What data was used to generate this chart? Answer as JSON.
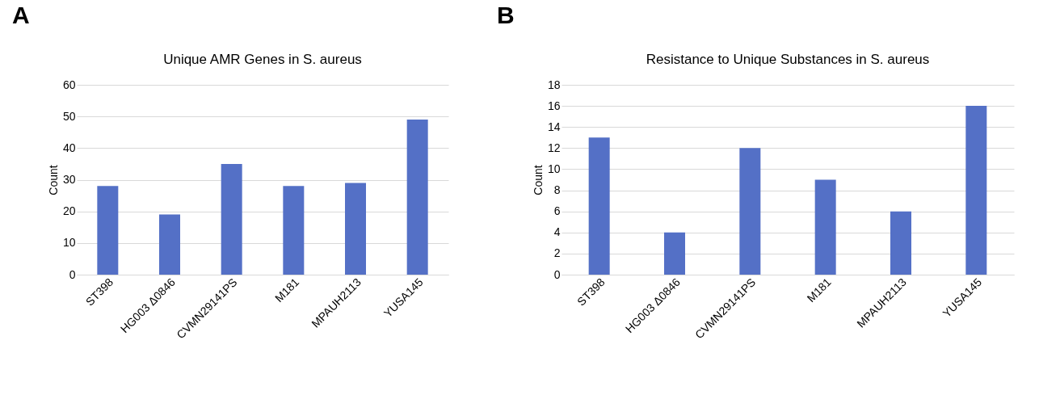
{
  "chart_data": [
    {
      "type": "bar",
      "title": "Unique AMR Genes in S. aureus",
      "ylabel": "Count",
      "annotations": [
        "A"
      ],
      "categories": [
        "ST398",
        "HG003 Δ0846",
        "CVMN29141PS",
        "M181",
        "MPAUH2113",
        "YUSA145"
      ],
      "values": [
        28,
        19,
        35,
        28,
        29,
        49
      ],
      "color": "#5470c6",
      "ylim": [
        0,
        60
      ],
      "yticks": [
        0,
        10,
        20,
        30,
        40,
        50,
        60
      ],
      "grid": "y"
    },
    {
      "type": "bar",
      "title": "Resistance to Unique Substances in S. aureus",
      "ylabel": "Count",
      "annotations": [
        "B"
      ],
      "categories": [
        "ST398",
        "HG003 Δ0846",
        "CVMN29141PS",
        "M181",
        "MPAUH2113",
        "YUSA145"
      ],
      "values": [
        13,
        4,
        12,
        9,
        6,
        16
      ],
      "color": "#5470c6",
      "ylim": [
        0,
        18
      ],
      "yticks": [
        0,
        2,
        4,
        6,
        8,
        10,
        12,
        14,
        16,
        18
      ],
      "grid": "y"
    }
  ]
}
